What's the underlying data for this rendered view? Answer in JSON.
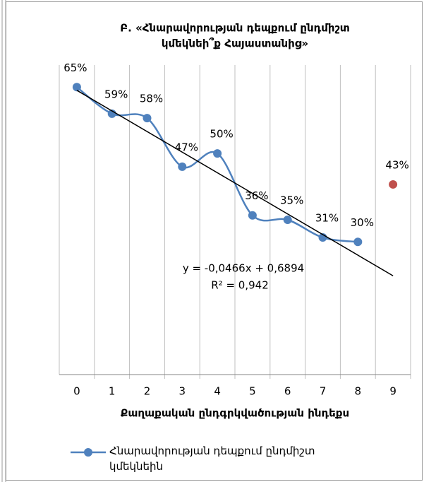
{
  "chart_data": {
    "type": "line",
    "title": [
      "Բ. «Հնարավորության դեպքում ընդմիշտ",
      "կմեկնեի՞ք Հայաստանից»"
    ],
    "x_label": "Քաղաքական ընդգրկվածության ինդեքս",
    "x": [
      0,
      1,
      2,
      3,
      4,
      5,
      6,
      7,
      8,
      9
    ],
    "ylim": [
      0,
      70
    ],
    "grid": true,
    "smooth": true,
    "series": [
      {
        "name": "Հնարավորության դեպքում ընդմիշտ կմեկնեին",
        "color": "#4f81bd",
        "values": [
          65,
          59,
          58,
          47,
          50,
          36,
          35,
          31,
          30,
          null
        ],
        "value_labels": [
          "65%",
          "59%",
          "58%",
          "47%",
          "50%",
          "36%",
          "35%",
          "31%",
          "30%",
          null
        ]
      },
      {
        "color": "#c0504d",
        "values": [
          null,
          null,
          null,
          null,
          null,
          null,
          null,
          null,
          null,
          43
        ],
        "value_labels": [
          null,
          null,
          null,
          null,
          null,
          null,
          null,
          null,
          null,
          "43%"
        ]
      }
    ],
    "trendline": {
      "slope": -0.0466,
      "intercept": 0.6894,
      "r2": 0.942,
      "equation": "y = -0,0466x + 0,6894",
      "r2_label": "R² = 0,942",
      "color": "#000000"
    }
  }
}
